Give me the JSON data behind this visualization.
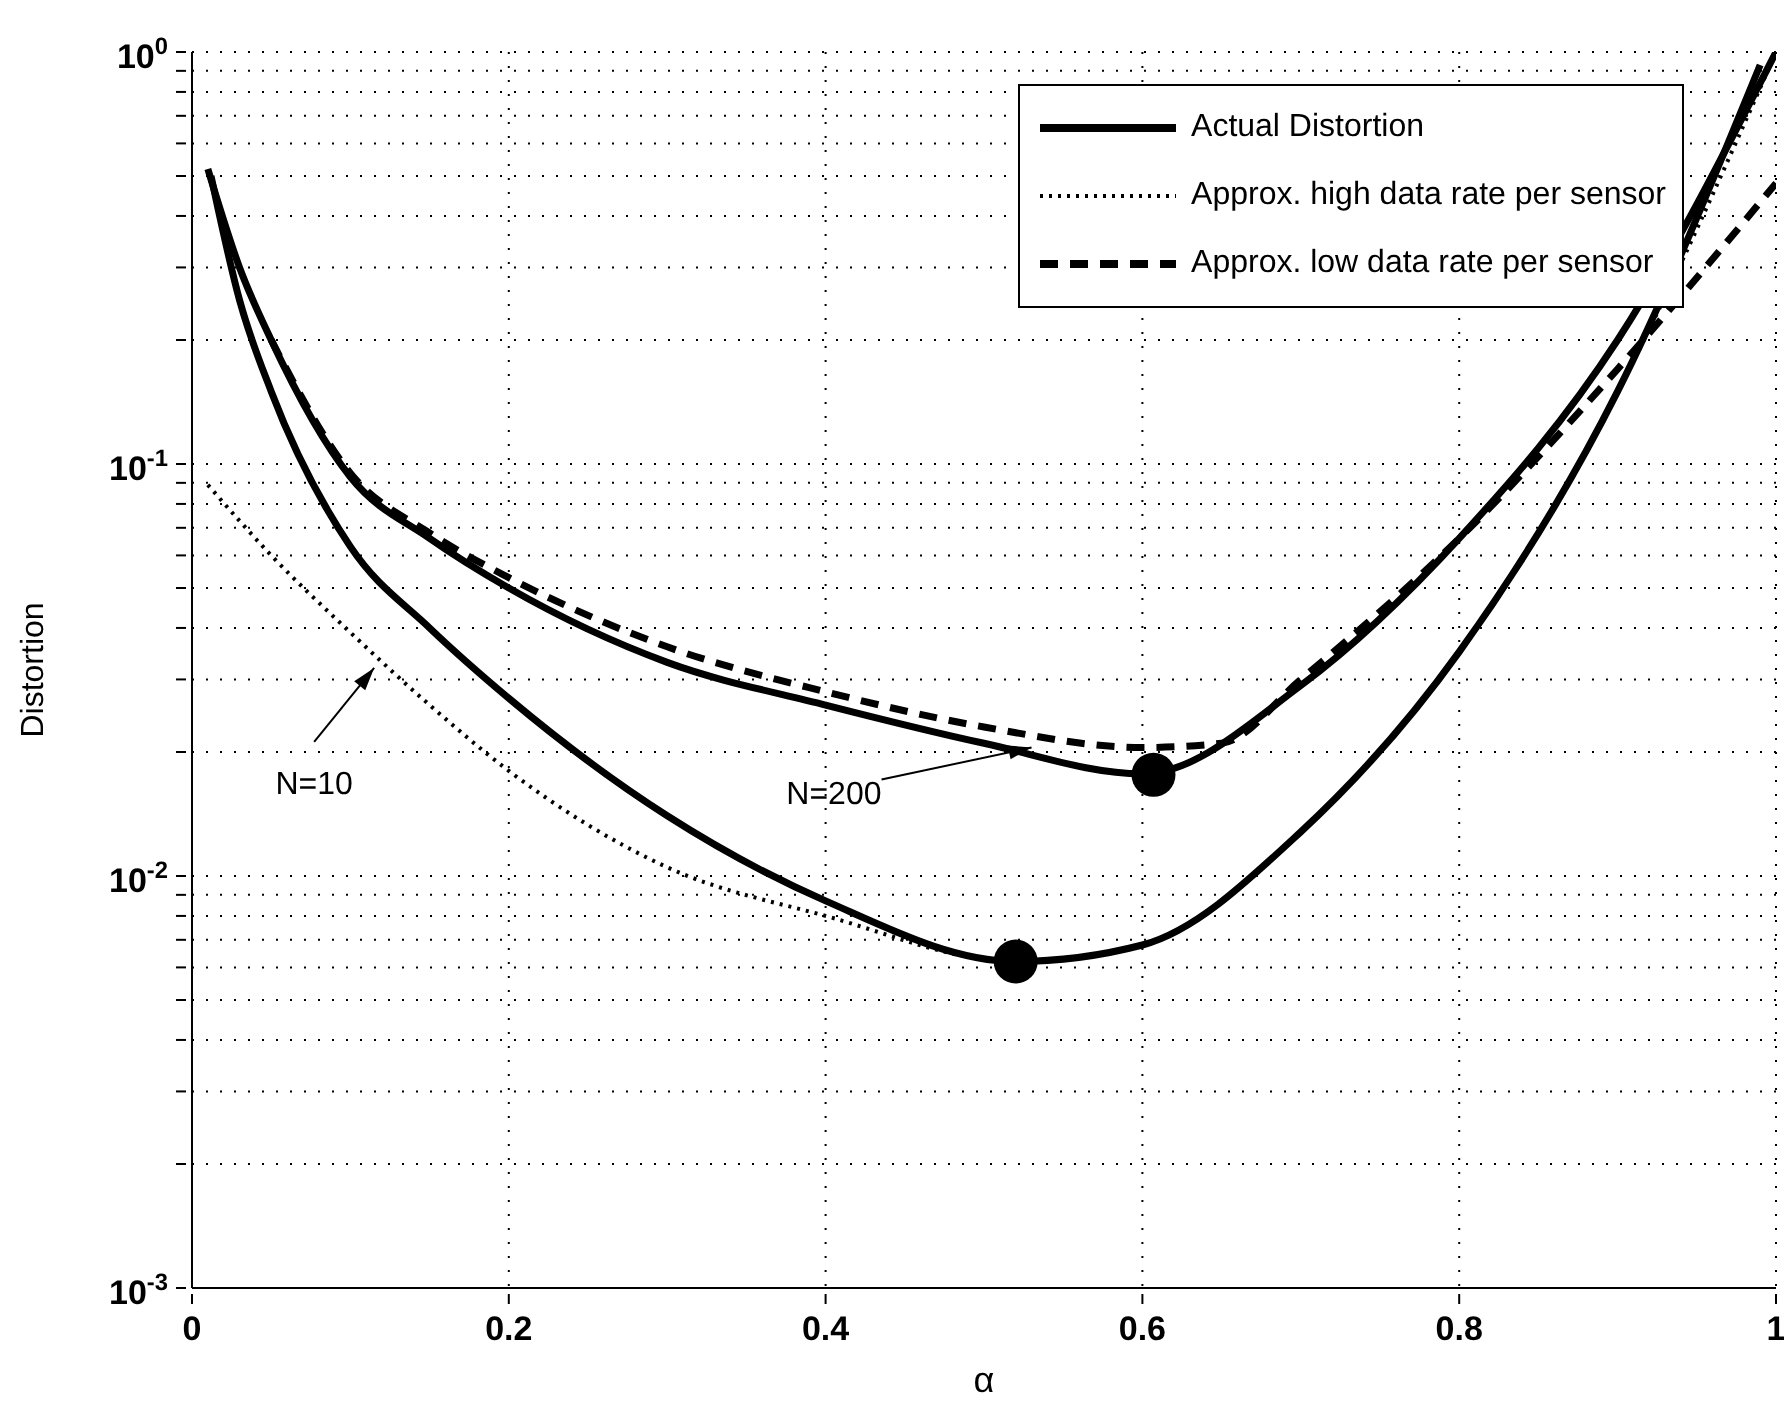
{
  "chart_data": {
    "type": "line",
    "xlabel": "α",
    "ylabel": "Distortion",
    "xlim": [
      0,
      1
    ],
    "xticks": [
      0,
      0.2,
      0.4,
      0.6,
      0.8,
      1
    ],
    "ylim": [
      0.001,
      1
    ],
    "log": "y",
    "grid": true,
    "legend": "top right",
    "yticks": [
      {
        "value": 0.001,
        "label": "10$^{-3}$"
      },
      {
        "value": 0.002,
        "label": null
      },
      {
        "value": 0.003,
        "label": null
      },
      {
        "value": 0.004,
        "label": null
      },
      {
        "value": 0.005,
        "label": null
      },
      {
        "value": 0.006,
        "label": null
      },
      {
        "value": 0.007,
        "label": null
      },
      {
        "value": 0.008,
        "label": null
      },
      {
        "value": 0.009,
        "label": null
      },
      {
        "value": 0.01,
        "label": "10$^{-2}$"
      },
      {
        "value": 0.02,
        "label": null
      },
      {
        "value": 0.03,
        "label": null
      },
      {
        "value": 0.04,
        "label": null
      },
      {
        "value": 0.05,
        "label": null
      },
      {
        "value": 0.06,
        "label": null
      },
      {
        "value": 0.07,
        "label": null
      },
      {
        "value": 0.08,
        "label": null
      },
      {
        "value": 0.09,
        "label": null
      },
      {
        "value": 0.1,
        "label": "10$^{-1}$"
      },
      {
        "value": 0.2,
        "label": null
      },
      {
        "value": 0.3,
        "label": null
      },
      {
        "value": 0.4,
        "label": null
      },
      {
        "value": 0.5,
        "label": null
      },
      {
        "value": 0.6,
        "label": null
      },
      {
        "value": 0.7,
        "label": null
      },
      {
        "value": 0.8,
        "label": null
      },
      {
        "value": 0.9,
        "label": null
      },
      {
        "value": 1,
        "label": "10$^{0}$"
      }
    ],
    "series": [
      {
        "name": "Actual Distortion",
        "color": "#000000",
        "line_style": "solid",
        "x": [
          0.01,
          0.03,
          0.05,
          0.1,
          0.15,
          0.2,
          0.3,
          0.4,
          0.5,
          0.6,
          0.7,
          0.8,
          0.9,
          1
        ],
        "values": [
          0.52,
          0.3,
          0.2,
          0.093,
          0.066,
          0.05,
          0.033,
          0.026,
          0.021,
          0.0177,
          0.029,
          0.066,
          0.2,
          1
        ]
      },
      {
        "color": "#000000",
        "line_style": "solid",
        "x": [
          0.012,
          0.03,
          0.05,
          0.1,
          0.15,
          0.2,
          0.3,
          0.4,
          0.52,
          0.6,
          0.7,
          0.8,
          0.9,
          0.99
        ],
        "values": [
          0.5,
          0.25,
          0.15,
          0.063,
          0.04,
          0.027,
          0.014,
          0.0087,
          0.0062,
          0.0068,
          0.0128,
          0.035,
          0.15,
          0.93
        ]
      },
      {
        "name": "Approx. high data rate per sensor",
        "color": "#000000",
        "line_style": "dotted",
        "x": [
          0.01,
          0.05,
          0.1,
          0.15,
          0.2,
          0.3,
          0.4,
          0.52,
          0.6,
          0.7,
          0.8,
          0.9,
          1
        ],
        "values": [
          0.089,
          0.06,
          0.039,
          0.026,
          0.018,
          0.0105,
          0.008,
          0.0062,
          0.0068,
          0.0128,
          0.035,
          0.15,
          1
        ]
      },
      {
        "name": "Approx. low data rate per sensor",
        "color": "#000000",
        "line_style": "dashed",
        "x": [
          0.05,
          0.1,
          0.15,
          0.2,
          0.3,
          0.4,
          0.5,
          0.6,
          0.65,
          0.7,
          0.8,
          0.9,
          1
        ],
        "values": [
          0.2,
          0.095,
          0.068,
          0.053,
          0.036,
          0.028,
          0.023,
          0.0205,
          0.021,
          0.03,
          0.066,
          0.17,
          0.48
        ]
      },
      {
        "type": "scatter",
        "color": "#000000",
        "marker": "circle",
        "x": [
          0.52,
          0.607
        ],
        "values": [
          0.0062,
          0.0176
        ]
      }
    ],
    "annotations": [
      {
        "text": "N=10",
        "x": 0.115,
        "y": 0.032
      },
      {
        "text": "N=200",
        "x": 0.53,
        "y": 0.0205
      }
    ]
  }
}
